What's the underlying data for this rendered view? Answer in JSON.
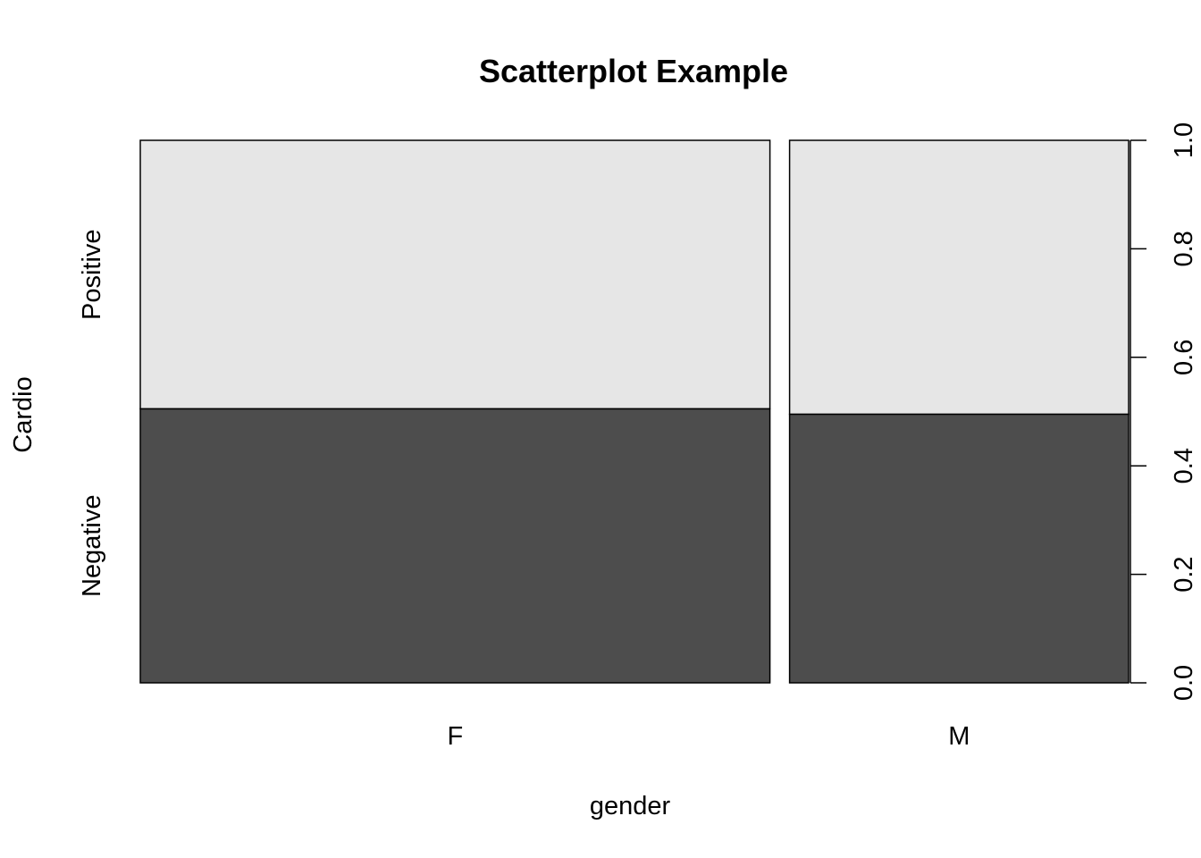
{
  "chart_data": {
    "type": "spineplot",
    "title": "Scatterplot Example",
    "xlabel": "gender",
    "ylabel": "Cardio",
    "categories": [
      "F",
      "M"
    ],
    "category_widths": [
      0.65,
      0.35
    ],
    "levels": [
      "Negative",
      "Positive"
    ],
    "values": [
      {
        "category": "F",
        "Negative": 0.505,
        "Positive": 0.495
      },
      {
        "category": "M",
        "Negative": 0.495,
        "Positive": 0.505
      }
    ],
    "right_axis": {
      "ylim": [
        0,
        1
      ],
      "ticks": [
        "0.0",
        "0.2",
        "0.4",
        "0.6",
        "0.8",
        "1.0"
      ]
    },
    "colors": {
      "Negative": "#4d4d4d",
      "Positive": "#e6e6e6"
    }
  }
}
